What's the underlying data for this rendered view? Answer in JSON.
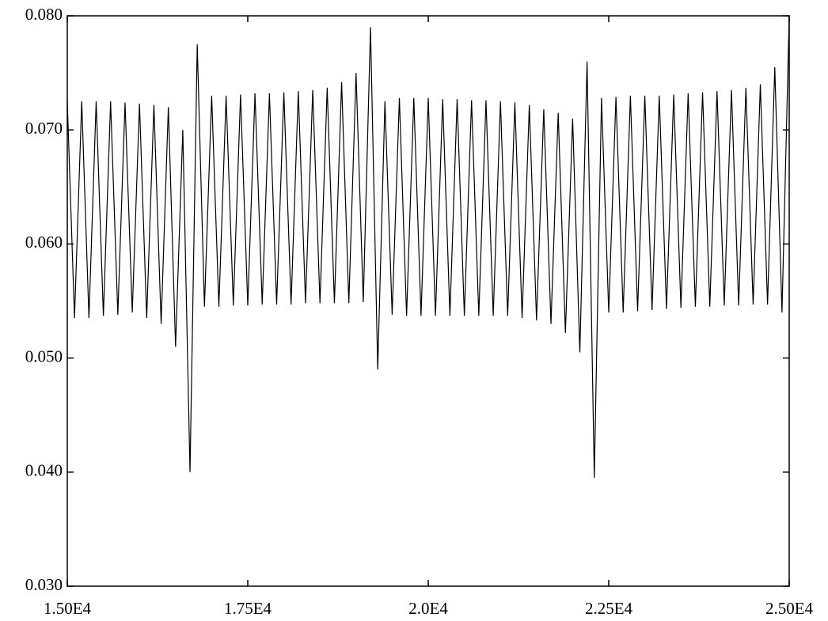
{
  "chart_data": {
    "type": "line",
    "x": [
      15000,
      15100,
      15200,
      15300,
      15400,
      15500,
      15600,
      15700,
      15800,
      15900,
      16000,
      16100,
      16200,
      16300,
      16400,
      16500,
      16600,
      16700,
      16800,
      16900,
      17000,
      17100,
      17200,
      17300,
      17400,
      17500,
      17600,
      17700,
      17800,
      17900,
      18000,
      18100,
      18200,
      18300,
      18400,
      18500,
      18600,
      18700,
      18800,
      18900,
      19000,
      19100,
      19200,
      19300,
      19400,
      19500,
      19600,
      19700,
      19800,
      19900,
      20000,
      20100,
      20200,
      20300,
      20400,
      20500,
      20600,
      20700,
      20800,
      20900,
      21000,
      21100,
      21200,
      21300,
      21400,
      21500,
      21600,
      21700,
      21800,
      21900,
      22000,
      22100,
      22200,
      22300,
      22400,
      22500,
      22600,
      22700,
      22800,
      22900,
      23000,
      23100,
      23200,
      23300,
      23400,
      23500,
      23600,
      23700,
      23800,
      23900,
      24000,
      24100,
      24200,
      24300,
      24400,
      24500,
      24600,
      24700,
      24800,
      24900,
      25000
    ],
    "series": [
      {
        "color": "#000000",
        "values": [
          0.0725,
          0.0535,
          0.0725,
          0.0535,
          0.0725,
          0.0537,
          0.0725,
          0.0538,
          0.0724,
          0.054,
          0.0723,
          0.0535,
          0.0722,
          0.053,
          0.072,
          0.051,
          0.07,
          0.04,
          0.0775,
          0.0545,
          0.073,
          0.0545,
          0.073,
          0.0546,
          0.0731,
          0.0546,
          0.0732,
          0.0547,
          0.0732,
          0.0547,
          0.0733,
          0.0547,
          0.0734,
          0.0548,
          0.0735,
          0.0548,
          0.0737,
          0.0548,
          0.0742,
          0.0548,
          0.075,
          0.0549,
          0.079,
          0.049,
          0.0725,
          0.0538,
          0.0728,
          0.0537,
          0.0728,
          0.0537,
          0.0728,
          0.0537,
          0.0727,
          0.0537,
          0.0727,
          0.0537,
          0.0726,
          0.0537,
          0.0726,
          0.0537,
          0.0725,
          0.0537,
          0.0724,
          0.0535,
          0.0722,
          0.0533,
          0.0718,
          0.053,
          0.0715,
          0.0522,
          0.071,
          0.0505,
          0.076,
          0.0395,
          0.0728,
          0.054,
          0.0729,
          0.054,
          0.073,
          0.0541,
          0.073,
          0.0542,
          0.073,
          0.0543,
          0.0731,
          0.0544,
          0.0732,
          0.0545,
          0.0733,
          0.0545,
          0.0734,
          0.0546,
          0.0735,
          0.0546,
          0.0737,
          0.0547,
          0.074,
          0.0547,
          0.0755,
          0.054,
          0.08
        ]
      }
    ],
    "xlim": [
      15000,
      25000
    ],
    "xticks": [
      {
        "value": 15000,
        "label": "1.50E4"
      },
      {
        "value": 17500,
        "label": "1.75E4"
      },
      {
        "value": 20000,
        "label": "2.0E4"
      },
      {
        "value": 22500,
        "label": "2.25E4"
      },
      {
        "value": 25000,
        "label": "2.50E4"
      }
    ],
    "ylim": [
      0.03,
      0.08
    ],
    "yticks": [
      {
        "value": 0.03,
        "label": "0.030"
      },
      {
        "value": 0.04,
        "label": "0.040"
      },
      {
        "value": 0.05,
        "label": "0.050"
      },
      {
        "value": 0.06,
        "label": "0.060"
      },
      {
        "value": 0.07,
        "label": "0.070"
      },
      {
        "value": 0.08,
        "label": "0.080"
      }
    ]
  }
}
